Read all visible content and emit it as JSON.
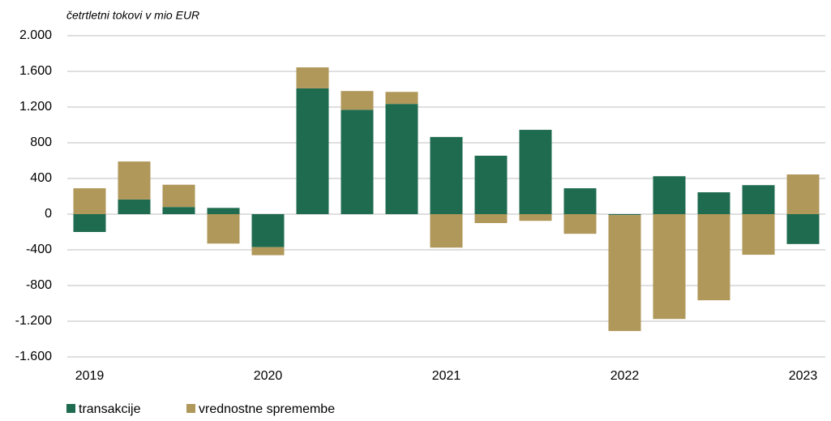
{
  "chart_data": {
    "type": "bar",
    "stacked": true,
    "subtitle": "četrtletni tokovi v mio EUR",
    "categories": [
      "2019",
      null,
      null,
      null,
      "2020",
      null,
      null,
      null,
      "2021",
      null,
      null,
      null,
      "2022",
      null,
      null,
      null,
      "2023"
    ],
    "series": [
      {
        "name": "transakcije",
        "color": "#1f6b50",
        "values": [
          -200,
          165,
          80,
          70,
          -370,
          1410,
          1170,
          1235,
          865,
          655,
          945,
          290,
          -10,
          425,
          245,
          325,
          -335
        ]
      },
      {
        "name": "vrednostne spremembe",
        "color": "#b0975a",
        "values": [
          290,
          425,
          250,
          -330,
          -90,
          235,
          210,
          135,
          -375,
          -100,
          -75,
          -220,
          -1300,
          -1175,
          -965,
          -455,
          445
        ]
      }
    ],
    "ylim": [
      -1600,
      2000
    ],
    "yticks": [
      {
        "value": -1600,
        "label": "-1.600"
      },
      {
        "value": -1200,
        "label": "-1.200"
      },
      -800,
      -400,
      0,
      400,
      800,
      {
        "value": 1200,
        "label": "1.200"
      },
      {
        "value": 1600,
        "label": "1.600"
      },
      {
        "value": 2000,
        "label": "2.000"
      }
    ],
    "grid": true,
    "legend": "bottom-left"
  }
}
